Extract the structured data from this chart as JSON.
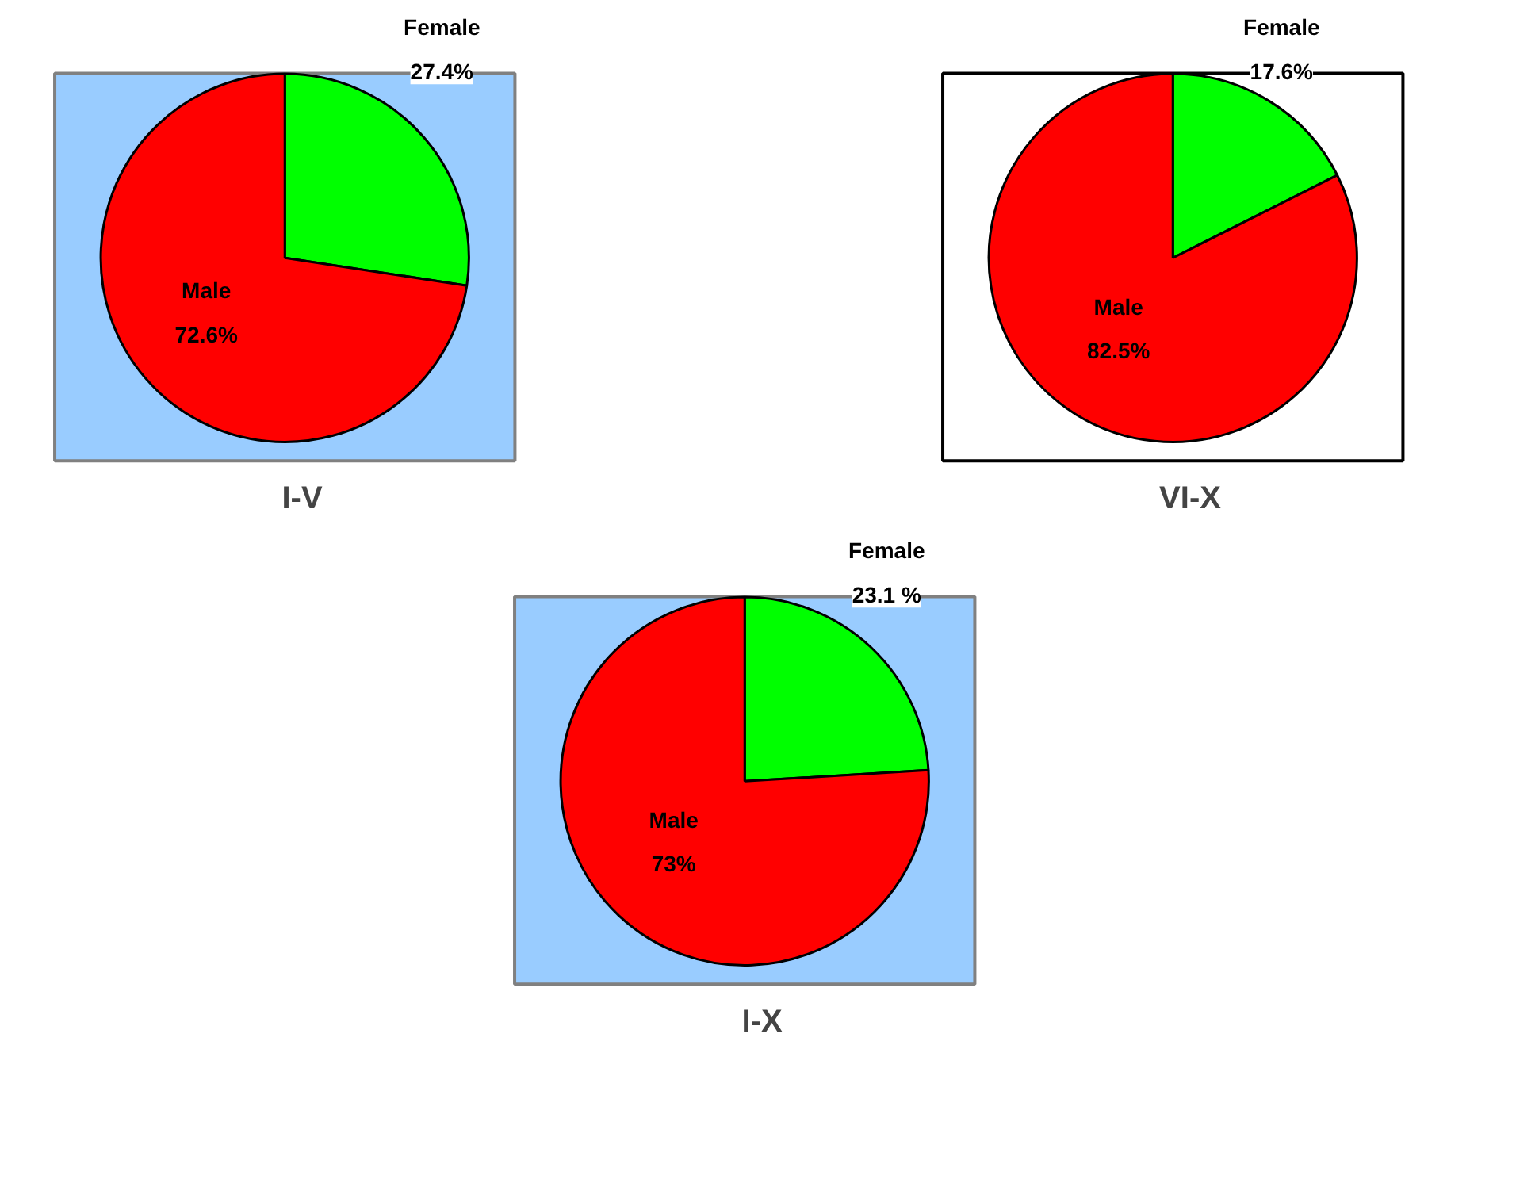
{
  "chart_data": [
    {
      "type": "pie",
      "title": "I-V",
      "categories": [
        "Female",
        "Male"
      ],
      "values": [
        27.4,
        72.6
      ],
      "colors": [
        "#00ff00",
        "#ff0000"
      ],
      "value_labels": [
        "27.4%",
        "72.6%"
      ],
      "legend": false
    },
    {
      "type": "pie",
      "title": "VI-X",
      "categories": [
        "Female",
        "Male"
      ],
      "values": [
        17.6,
        82.5
      ],
      "colors": [
        "#00ff00",
        "#ff0000"
      ],
      "value_labels": [
        "17.6%",
        "82.5%"
      ],
      "legend": false
    },
    {
      "type": "pie",
      "title": "I-X",
      "categories": [
        "Female",
        "Male"
      ],
      "values": [
        23.1,
        73
      ],
      "colors": [
        "#00ff00",
        "#ff0000"
      ],
      "value_labels": [
        "23.1 %",
        "73%"
      ],
      "legend": false
    }
  ]
}
